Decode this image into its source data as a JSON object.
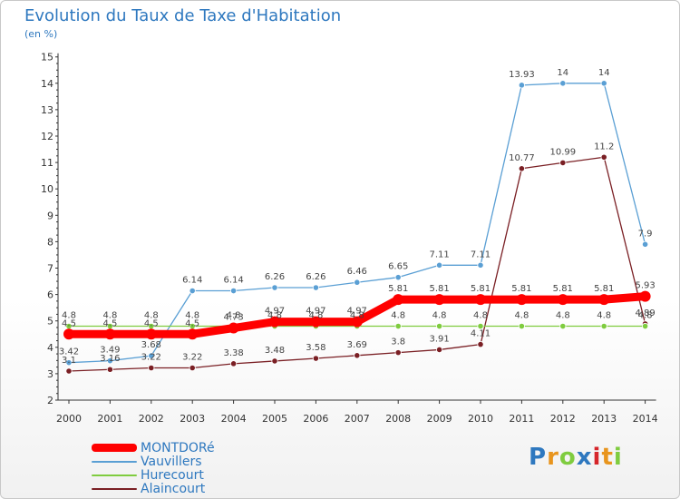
{
  "chart_data": {
    "type": "line",
    "title": "Evolution du Taux de Taxe d'Habitation",
    "subtitle": "(en %)",
    "x": [
      "2000",
      "2001",
      "2002",
      "2003",
      "2004",
      "2005",
      "2006",
      "2007",
      "2008",
      "2009",
      "2010",
      "2011",
      "2012",
      "2013",
      "2014"
    ],
    "ylim": [
      2,
      15
    ],
    "yticks": [
      2,
      3,
      4,
      5,
      6,
      7,
      8,
      9,
      10,
      11,
      12,
      13,
      14,
      15
    ],
    "grid": false,
    "legend_position": "bottom-left",
    "series": [
      {
        "name": "MONTDORé",
        "color": "#ff0000",
        "values": [
          4.5,
          4.5,
          4.5,
          4.5,
          4.73,
          4.97,
          4.97,
          4.97,
          5.81,
          5.81,
          5.81,
          5.81,
          5.81,
          5.81,
          5.93
        ],
        "labels": [
          "4.5",
          "4.5",
          "4.5",
          "4.5",
          "4.73",
          "4.97",
          "4.97",
          "4.97",
          "5.81",
          "5.81",
          "5.81",
          "5.81",
          "5.81",
          "5.81",
          "5.93"
        ]
      },
      {
        "name": "Vauvillers",
        "color": "#5a9fd4",
        "values": [
          3.42,
          3.49,
          3.68,
          6.14,
          6.14,
          6.26,
          6.26,
          6.46,
          6.65,
          7.11,
          7.11,
          13.93,
          14,
          14,
          7.9
        ],
        "labels": [
          "3.42",
          "3.49",
          "3.68",
          "6.14",
          "6.14",
          "6.26",
          "6.26",
          "6.46",
          "6.65",
          "7.11",
          "7.11",
          "13.93",
          "14",
          "14",
          "7.9"
        ]
      },
      {
        "name": "Hurecourt",
        "color": "#7fcc3f",
        "values": [
          4.8,
          4.8,
          4.8,
          4.8,
          4.8,
          4.8,
          4.8,
          4.8,
          4.8,
          4.8,
          4.8,
          4.8,
          4.8,
          4.8,
          4.8
        ],
        "labels": [
          "4.8",
          "4.8",
          "4.8",
          "4.8",
          "4.8",
          "4.8",
          "4.8",
          "4.8",
          "4.8",
          "4.8",
          "4.8",
          "4.8",
          "4.8",
          "4.8",
          "4.8"
        ]
      },
      {
        "name": "Alaincourt",
        "color": "#7a1f24",
        "values": [
          3.1,
          3.16,
          3.22,
          3.22,
          3.38,
          3.48,
          3.58,
          3.69,
          3.8,
          3.91,
          4.11,
          10.77,
          10.99,
          11.2,
          4.89
        ],
        "labels": [
          "3.1",
          "3.16",
          "3.22",
          "3.22",
          "3.38",
          "3.48",
          "3.58",
          "3.69",
          "3.8",
          "3.91",
          "4.11",
          "10.77",
          "10.99",
          "11.2",
          "4.89"
        ]
      }
    ]
  },
  "logo": {
    "letters": [
      "P",
      "r",
      "o",
      "x",
      "i",
      "t",
      "i"
    ],
    "colors": [
      "#2e78bf",
      "#e8951e",
      "#7fcc3f",
      "#2e78bf",
      "#d6252a",
      "#e8951e",
      "#7fcc3f"
    ]
  }
}
